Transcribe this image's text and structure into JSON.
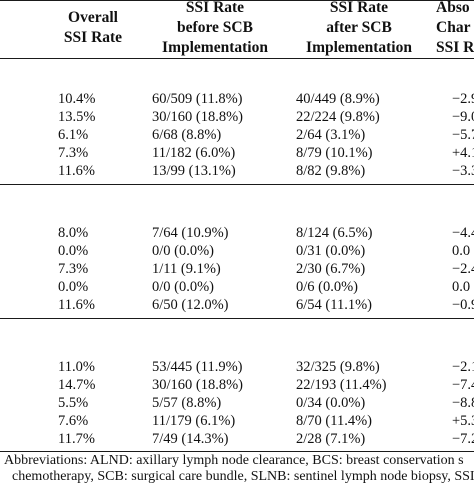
{
  "headers": {
    "overall": [
      "Overall",
      "SSI Rate"
    ],
    "before": [
      "SSI Rate",
      "before SCB",
      "Implementation"
    ],
    "after": [
      "SSI Rate",
      "after SCB",
      "Implementation"
    ],
    "absolute": [
      "Abso",
      "Char",
      "SSI R"
    ]
  },
  "groups": [
    {
      "rows": [
        {
          "overall": "10.4%",
          "before": "60/509 (11.8%)",
          "after": "40/449 (8.9%)",
          "change": "−2.9"
        },
        {
          "overall": "13.5%",
          "before": "30/160 (18.8%)",
          "after": "22/224 (9.8%)",
          "change": "−9.0"
        },
        {
          "overall": "6.1%",
          "before": "6/68 (8.8%)",
          "after": "2/64 (3.1%)",
          "change": "−5.7"
        },
        {
          "overall": "7.3%",
          "before": "11/182 (6.0%)",
          "after": "8/79 (10.1%)",
          "change": "+4.1"
        },
        {
          "overall": "11.6%",
          "before": "13/99 (13.1%)",
          "after": "8/82 (9.8%)",
          "change": "−3.3"
        }
      ]
    },
    {
      "rows": [
        {
          "overall": "8.0%",
          "before": "7/64 (10.9%)",
          "after": "8/124 (6.5%)",
          "change": "−4.4"
        },
        {
          "overall": "0.0%",
          "before": "0/0 (0.0%)",
          "after": "0/31 (0.0%)",
          "change": "0.0"
        },
        {
          "overall": "7.3%",
          "before": "1/11 (9.1%)",
          "after": "2/30 (6.7%)",
          "change": "−2.4"
        },
        {
          "overall": "0.0%",
          "before": "0/0 (0.0%)",
          "after": "0/6 (0.0%)",
          "change": "0.0"
        },
        {
          "overall": "11.6%",
          "before": "6/50 (12.0%)",
          "after": "6/54 (11.1%)",
          "change": "−0.9"
        }
      ]
    },
    {
      "rows": [
        {
          "overall": "11.0%",
          "before": "53/445 (11.9%)",
          "after": "32/325 (9.8%)",
          "change": "−2.1"
        },
        {
          "overall": "14.7%",
          "before": "30/160 (18.8%)",
          "after": "22/193 (11.4%)",
          "change": "−7.4"
        },
        {
          "overall": "5.5%",
          "before": "5/57 (8.8%)",
          "after": "0/34 (0.0%)",
          "change": "−8.8"
        },
        {
          "overall": "7.6%",
          "before": "11/179 (6.1%)",
          "after": "8/70 (11.4%)",
          "change": "+5.3"
        },
        {
          "overall": "11.7%",
          "before": "7/49 (14.3%)",
          "after": "2/28 (7.1%)",
          "change": "−7.2"
        }
      ]
    }
  ],
  "footnote": {
    "line1": "Abbreviations: ALND: axillary lymph node clearance, BCS: breast conservation s",
    "line2": "chemotherapy, SCB: surgical care bundle, SLNB: sentinel lymph node biopsy, SSI: s"
  }
}
